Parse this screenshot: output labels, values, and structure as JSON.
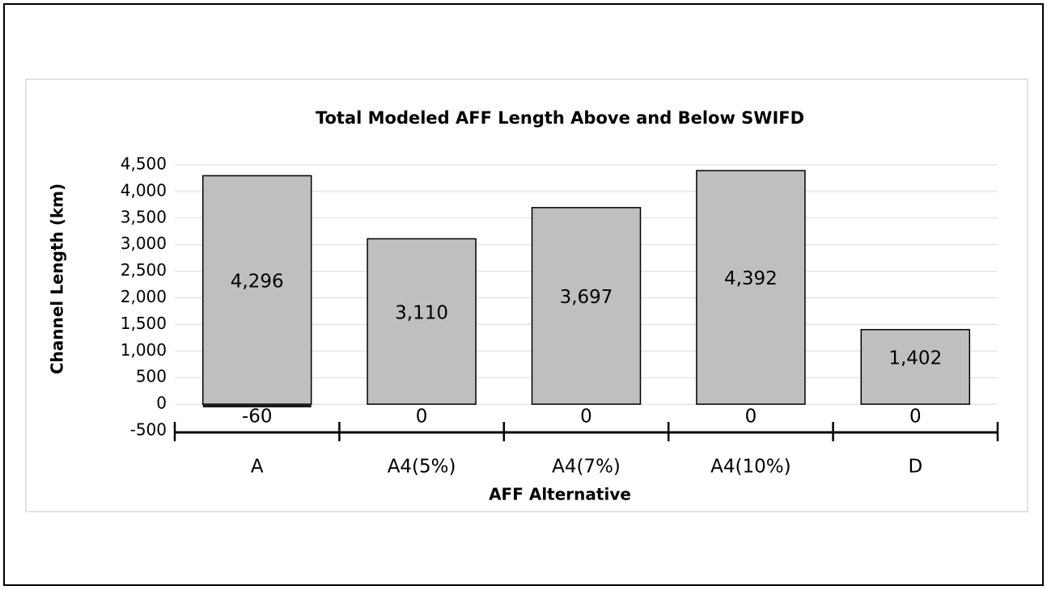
{
  "chart_data": {
    "type": "bar",
    "stacked": true,
    "title": "Total Modeled AFF Length Above and Below SWIFD",
    "x_label": "AFF Alternative",
    "y_label": "Channel Length (km)",
    "categories": [
      "A",
      "A4(5%)",
      "A4(7%)",
      "A4(10%)",
      "D"
    ],
    "series": [
      {
        "color": "#bfbfbf",
        "values": [
          4296,
          3110,
          3697,
          4392,
          1402
        ],
        "value_labels": [
          "4,296",
          "3,110",
          "3,697",
          "4,392",
          "1,402"
        ]
      },
      {
        "color": "#1a1a1a",
        "values": [
          -60,
          0,
          0,
          0,
          0
        ]
      }
    ],
    "ylim": [
      -500,
      4500
    ],
    "yticks": [
      -500,
      0,
      500,
      {
        "value": 1000,
        "label": "1,000"
      },
      {
        "value": 1500,
        "label": "1,500"
      },
      {
        "value": 2000,
        "label": "2,000"
      },
      {
        "value": 2500,
        "label": "2,500"
      },
      {
        "value": 3000,
        "label": "3,000"
      },
      {
        "value": 3500,
        "label": "3,500"
      },
      {
        "value": 4000,
        "label": "4,000"
      },
      {
        "value": 4500,
        "label": "4,500"
      }
    ],
    "grid": true
  }
}
